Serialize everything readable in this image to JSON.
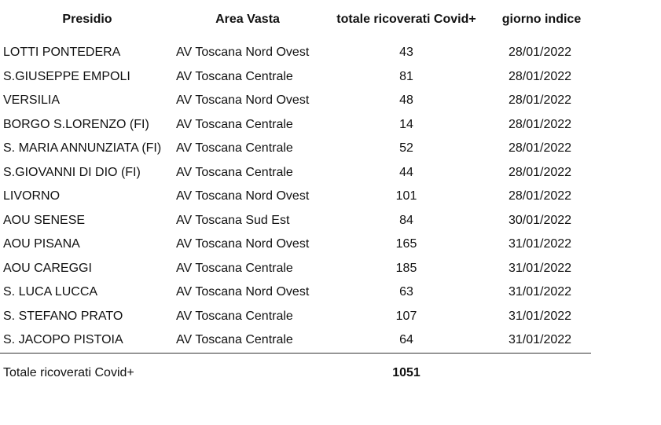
{
  "headers": {
    "presidio": "Presidio",
    "area_vasta": "Area Vasta",
    "totale": "totale ricoverati Covid+",
    "giorno": "giorno indice"
  },
  "rows": [
    {
      "presidio": "LOTTI PONTEDERA",
      "area": "AV Toscana Nord Ovest",
      "totale": "43",
      "giorno": "28/01/2022"
    },
    {
      "presidio": "S.GIUSEPPE EMPOLI",
      "area": "AV Toscana Centrale",
      "totale": "81",
      "giorno": "28/01/2022"
    },
    {
      "presidio": "VERSILIA",
      "area": "AV Toscana Nord Ovest",
      "totale": "48",
      "giorno": "28/01/2022"
    },
    {
      "presidio": "BORGO S.LORENZO (FI)",
      "area": "AV Toscana Centrale",
      "totale": "14",
      "giorno": "28/01/2022"
    },
    {
      "presidio": "S. MARIA ANNUNZIATA (FI)",
      "area": "AV Toscana Centrale",
      "totale": "52",
      "giorno": "28/01/2022"
    },
    {
      "presidio": "S.GIOVANNI DI DIO (FI)",
      "area": "AV Toscana Centrale",
      "totale": "44",
      "giorno": "28/01/2022"
    },
    {
      "presidio": "LIVORNO",
      "area": "AV Toscana Nord Ovest",
      "totale": "101",
      "giorno": "28/01/2022"
    },
    {
      "presidio": "AOU SENESE",
      "area": "AV Toscana Sud Est",
      "totale": "84",
      "giorno": "30/01/2022"
    },
    {
      "presidio": "AOU PISANA",
      "area": "AV Toscana Nord Ovest",
      "totale": "165",
      "giorno": "31/01/2022"
    },
    {
      "presidio": "AOU CAREGGI",
      "area": "AV Toscana Centrale",
      "totale": "185",
      "giorno": "31/01/2022"
    },
    {
      "presidio": "S. LUCA LUCCA",
      "area": "AV Toscana Nord Ovest",
      "totale": "63",
      "giorno": "31/01/2022"
    },
    {
      "presidio": "S. STEFANO PRATO",
      "area": "AV Toscana Centrale",
      "totale": "107",
      "giorno": "31/01/2022"
    },
    {
      "presidio": "S. JACOPO PISTOIA",
      "area": "AV Toscana Centrale",
      "totale": "64",
      "giorno": "31/01/2022"
    }
  ],
  "footer": {
    "label": "Totale ricoverati Covid+",
    "value": "1051"
  }
}
